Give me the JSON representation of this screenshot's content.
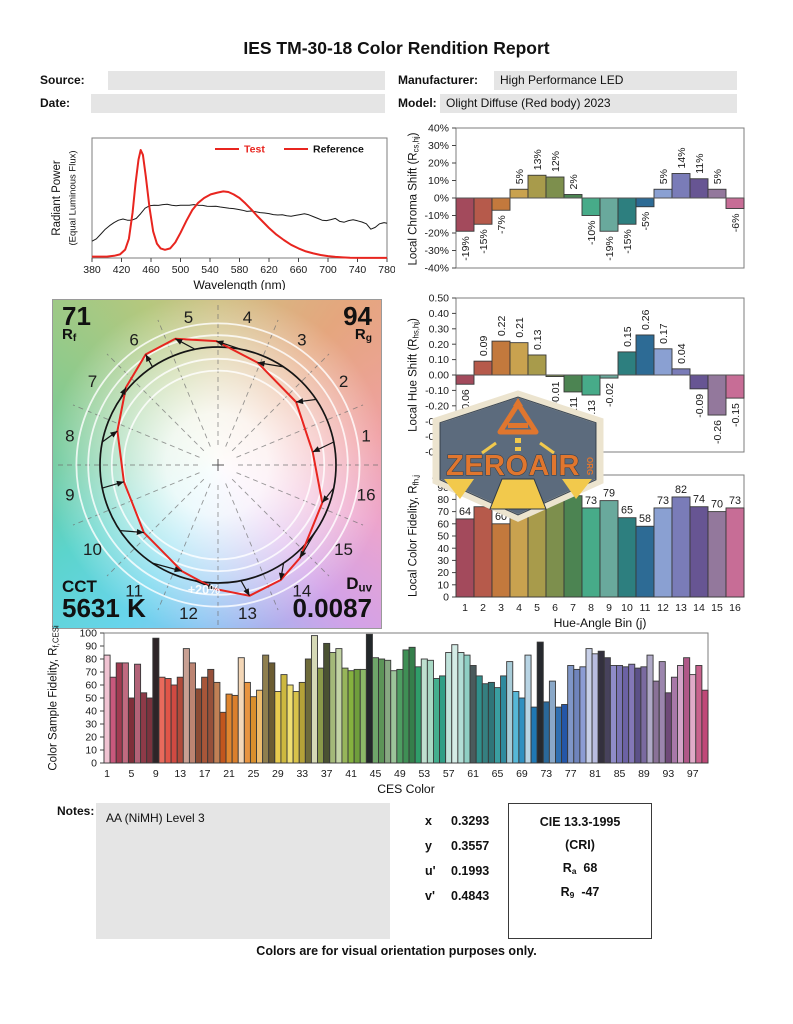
{
  "title": "IES TM-30-18 Color Rendition Report",
  "header": {
    "source_label": "Source:",
    "source_value": "",
    "date_label": "Date:",
    "date_value": "",
    "manufacturer_label": "Manufacturer:",
    "manufacturer_value": "High Performance LED",
    "model_label": "Model:",
    "model_value": "Olight Diffuse (Red body) 2023"
  },
  "cvg": {
    "rf_value": "71",
    "rf_pre": "R",
    "rf_sub": "f",
    "rg_value": "94",
    "rg_pre": "R",
    "rg_sub": "g",
    "cct_label": "CCT",
    "cct_value": "5631 K",
    "duv_pre": "D",
    "duv_sub": "uv",
    "duv_value": "0.0087",
    "ring_label": "+20%"
  },
  "watermark": {
    "text": "ZEROAIR",
    "suffix": "ORG"
  },
  "notes": {
    "label": "Notes:",
    "text": "AA (NiMH) Level 3"
  },
  "chromaticity": {
    "rows": [
      {
        "label": "x",
        "value": "0.3293"
      },
      {
        "label": "y",
        "value": "0.3557"
      },
      {
        "label": "u'",
        "value": "0.1993"
      },
      {
        "label": "v'",
        "value": "0.4843"
      }
    ]
  },
  "cie": {
    "title": "CIE 13.3-1995",
    "subtitle": "(CRI)",
    "ra_pre": "R",
    "ra_sub": "a",
    "ra_value": "68",
    "r9_pre": "R",
    "r9_sub": "9",
    "r9_value": "-47"
  },
  "footer": "Colors are for visual orientation purposes only.",
  "chart_data": [
    {
      "id": "spd",
      "type": "line",
      "xlabel": "Wavelength (nm)",
      "ylabel1": "Radiant Power",
      "ylabel2": "(Equal Luminous Flux)",
      "x_ticks": [
        380,
        420,
        460,
        500,
        540,
        580,
        620,
        660,
        700,
        740,
        780
      ],
      "xlim": [
        380,
        780
      ],
      "legend_line_color": "#e8251f",
      "series": [
        {
          "name": "Reference",
          "color": "#1a1a1a",
          "label_color": "#111111",
          "width": 1,
          "points": [
            [
              380,
              0.14
            ],
            [
              386,
              0.16
            ],
            [
              392,
              0.2
            ],
            [
              398,
              0.24
            ],
            [
              404,
              0.27
            ],
            [
              410,
              0.295
            ],
            [
              416,
              0.315
            ],
            [
              422,
              0.325
            ],
            [
              428,
              0.315
            ],
            [
              434,
              0.315
            ],
            [
              440,
              0.33
            ],
            [
              446,
              0.37
            ],
            [
              452,
              0.415
            ],
            [
              458,
              0.435
            ],
            [
              464,
              0.44
            ],
            [
              470,
              0.438
            ],
            [
              476,
              0.445
            ],
            [
              482,
              0.448
            ],
            [
              488,
              0.44
            ],
            [
              494,
              0.435
            ],
            [
              500,
              0.44
            ],
            [
              506,
              0.44
            ],
            [
              512,
              0.44
            ],
            [
              518,
              0.445
            ],
            [
              524,
              0.44
            ],
            [
              530,
              0.438
            ],
            [
              536,
              0.432
            ],
            [
              542,
              0.43
            ],
            [
              548,
              0.432
            ],
            [
              554,
              0.425
            ],
            [
              560,
              0.42
            ],
            [
              566,
              0.415
            ],
            [
              572,
              0.412
            ],
            [
              578,
              0.405
            ],
            [
              584,
              0.398
            ],
            [
              590,
              0.388
            ],
            [
              596,
              0.392
            ],
            [
              602,
              0.385
            ],
            [
              608,
              0.378
            ],
            [
              614,
              0.375
            ],
            [
              620,
              0.37
            ],
            [
              626,
              0.362
            ],
            [
              632,
              0.358
            ],
            [
              638,
              0.36
            ],
            [
              644,
              0.352
            ],
            [
              650,
              0.348
            ],
            [
              656,
              0.355
            ],
            [
              662,
              0.362
            ],
            [
              668,
              0.368
            ],
            [
              674,
              0.36
            ],
            [
              680,
              0.345
            ],
            [
              686,
              0.33
            ],
            [
              692,
              0.315
            ],
            [
              698,
              0.312
            ],
            [
              704,
              0.32
            ],
            [
              710,
              0.33
            ],
            [
              716,
              0.305
            ],
            [
              722,
              0.298
            ],
            [
              728,
              0.312
            ],
            [
              734,
              0.318
            ],
            [
              740,
              0.31
            ],
            [
              746,
              0.3
            ],
            [
              752,
              0.285
            ],
            [
              758,
              0.24
            ],
            [
              764,
              0.255
            ],
            [
              770,
              0.285
            ],
            [
              776,
              0.295
            ],
            [
              780,
              0.29
            ]
          ]
        },
        {
          "name": "Test",
          "color": "#e8251f",
          "label_color": "#e8251f",
          "width": 2,
          "points": [
            [
              380,
              0.012
            ],
            [
              400,
              0.012
            ],
            [
              410,
              0.018
            ],
            [
              418,
              0.03
            ],
            [
              425,
              0.07
            ],
            [
              430,
              0.16
            ],
            [
              435,
              0.38
            ],
            [
              439,
              0.62
            ],
            [
              443,
              0.82
            ],
            [
              446,
              0.9
            ],
            [
              449,
              0.86
            ],
            [
              453,
              0.68
            ],
            [
              458,
              0.42
            ],
            [
              463,
              0.22
            ],
            [
              468,
              0.12
            ],
            [
              473,
              0.08
            ],
            [
              479,
              0.068
            ],
            [
              486,
              0.08
            ],
            [
              493,
              0.13
            ],
            [
              500,
              0.21
            ],
            [
              508,
              0.31
            ],
            [
              516,
              0.4
            ],
            [
              524,
              0.46
            ],
            [
              532,
              0.5
            ],
            [
              541,
              0.53
            ],
            [
              550,
              0.545
            ],
            [
              558,
              0.555
            ],
            [
              565,
              0.55
            ],
            [
              572,
              0.53
            ],
            [
              580,
              0.5
            ],
            [
              588,
              0.455
            ],
            [
              596,
              0.405
            ],
            [
              604,
              0.35
            ],
            [
              612,
              0.3
            ],
            [
              620,
              0.25
            ],
            [
              630,
              0.195
            ],
            [
              640,
              0.15
            ],
            [
              650,
              0.11
            ],
            [
              660,
              0.08
            ],
            [
              670,
              0.055
            ],
            [
              680,
              0.038
            ],
            [
              690,
              0.025
            ],
            [
              700,
              0.016
            ],
            [
              710,
              0.009
            ],
            [
              720,
              0.005
            ],
            [
              730,
              0.002
            ],
            [
              745,
              0.001
            ],
            [
              780,
              0.001
            ]
          ]
        }
      ]
    },
    {
      "id": "local_chroma_shift",
      "type": "bar",
      "ylabel_parts": [
        "Local Chroma Shift (R",
        "cs,hj",
        ")"
      ],
      "categories": [
        1,
        2,
        3,
        4,
        5,
        6,
        7,
        8,
        9,
        10,
        11,
        12,
        13,
        14,
        15,
        16
      ],
      "values": [
        -19,
        -15,
        -7,
        5,
        13,
        12,
        2,
        -10,
        -19,
        -15,
        -5,
        5,
        14,
        11,
        5,
        -6
      ],
      "ylim": [
        -40,
        40
      ],
      "ytick": 10,
      "yfmt": "pct",
      "colors": [
        "#a34a5c",
        "#b65a4b",
        "#c3793d",
        "#c9a24f",
        "#a89b4b",
        "#7d8f4d",
        "#4c8452",
        "#47ab89",
        "#69a99c",
        "#2d7f7f",
        "#2d6b95",
        "#8aa0d2",
        "#7a7cb8",
        "#675593",
        "#93789c",
        "#c76d96"
      ]
    },
    {
      "id": "local_hue_shift",
      "type": "bar",
      "ylabel_parts": [
        "Local Hue Shift (R",
        "hs,hj",
        ")"
      ],
      "categories": [
        1,
        2,
        3,
        4,
        5,
        6,
        7,
        8,
        9,
        10,
        11,
        12,
        13,
        14,
        15,
        16
      ],
      "values": [
        -0.06,
        0.09,
        0.22,
        0.21,
        0.13,
        -0.01,
        -0.11,
        -0.13,
        -0.02,
        0.15,
        0.26,
        0.17,
        0.04,
        -0.09,
        -0.26,
        -0.15
      ],
      "ylim": [
        -0.5,
        0.5
      ],
      "ytick": 0.1,
      "ydec": 2,
      "colors": [
        "#a34a5c",
        "#b65a4b",
        "#c3793d",
        "#c9a24f",
        "#a89b4b",
        "#7d8f4d",
        "#4c8452",
        "#47ab89",
        "#69a99c",
        "#2d7f7f",
        "#2d6b95",
        "#8aa0d2",
        "#7a7cb8",
        "#675593",
        "#93789c",
        "#c76d96"
      ]
    },
    {
      "id": "local_color_fidelity",
      "type": "bar",
      "ylabel_parts": [
        "Local Color Fidelity, R",
        "fh,j",
        ""
      ],
      "xlabel": "Hue-Angle Bin (j)",
      "categories": [
        1,
        2,
        3,
        4,
        5,
        6,
        7,
        8,
        9,
        10,
        11,
        12,
        13,
        14,
        15,
        16
      ],
      "values": [
        64,
        74,
        60,
        67,
        74,
        82,
        83,
        73,
        79,
        65,
        58,
        73,
        82,
        74,
        70,
        73
      ],
      "ylim": [
        0,
        100
      ],
      "ytick": 10,
      "colors": [
        "#a34a5c",
        "#b65a4b",
        "#c3793d",
        "#c9a24f",
        "#a89b4b",
        "#7d8f4d",
        "#4c8452",
        "#47ab89",
        "#69a99c",
        "#2d7f7f",
        "#2d6b95",
        "#8aa0d2",
        "#7a7cb8",
        "#675593",
        "#93789c",
        "#c76d96"
      ]
    },
    {
      "id": "ces",
      "type": "bar",
      "ylabel_parts": [
        "Color Sample Fidelity, R",
        "f,CESi",
        ""
      ],
      "xlabel": "CES Color",
      "x_tick_labels": [
        1,
        5,
        9,
        13,
        17,
        21,
        25,
        29,
        33,
        37,
        41,
        45,
        49,
        53,
        57,
        61,
        65,
        69,
        73,
        77,
        81,
        85,
        89,
        93,
        97
      ],
      "values": [
        83,
        66,
        77,
        77,
        50,
        76,
        54,
        50,
        96,
        66,
        65,
        60,
        66,
        88,
        77,
        57,
        66,
        72,
        62,
        39,
        53,
        52,
        81,
        62,
        51,
        56,
        83,
        77,
        55,
        68,
        60,
        55,
        62,
        80,
        98,
        73,
        92,
        85,
        88,
        73,
        71,
        72,
        72,
        99,
        81,
        80,
        79,
        71,
        72,
        87,
        89,
        74,
        80,
        79,
        65,
        67,
        85,
        91,
        85,
        83,
        75,
        67,
        61,
        62,
        58,
        67,
        78,
        55,
        50,
        83,
        43,
        93,
        47,
        63,
        43,
        45,
        75,
        72,
        74,
        88,
        84,
        86,
        81,
        75,
        75,
        74,
        76,
        73,
        74,
        83,
        63,
        78,
        54,
        66,
        75,
        81,
        68,
        75,
        56
      ],
      "ylim": [
        0,
        100
      ],
      "ytick": 10,
      "colors": [
        "#f0c3d2",
        "#c8587c",
        "#a03a50",
        "#c06a80",
        "#7e2f3a",
        "#b26378",
        "#8e3a48",
        "#7c333e",
        "#2e2528",
        "#e86a5c",
        "#e05548",
        "#d04a42",
        "#b04a3a",
        "#c8a093",
        "#bc8472",
        "#8a4a33",
        "#a85639",
        "#96503a",
        "#c08055",
        "#c2561d",
        "#e0862e",
        "#da7f2c",
        "#f4d7b7",
        "#e89440",
        "#d98f2c",
        "#eebd6e",
        "#8f7f4e",
        "#6b5c32",
        "#e8cc4e",
        "#cdb83f",
        "#f0df71",
        "#d8c24a",
        "#b5a238",
        "#6e6b3a",
        "#d6d9b6",
        "#8a9a4a",
        "#4a5232",
        "#a4b979",
        "#c3d4a5",
        "#97b55a",
        "#85b23e",
        "#6f9e3c",
        "#8cba68",
        "#23282a",
        "#6fa66a",
        "#5c9458",
        "#87a882",
        "#9cc49a",
        "#4e9e62",
        "#3f8f55",
        "#357f4b",
        "#2f9e6a",
        "#bfe0d0",
        "#a8d8c4",
        "#44ae8e",
        "#2f9e86",
        "#bfe2da",
        "#d4ece6",
        "#b2ded6",
        "#8fcfc4",
        "#4a5a5c",
        "#2f8f8c",
        "#357f80",
        "#2f7578",
        "#3a9ea0",
        "#2f8a9e",
        "#a8ccd8",
        "#57b8d8",
        "#2f8fc0",
        "#b8d4e4",
        "#1f78b4",
        "#26292e",
        "#2a6899",
        "#8aa8c8",
        "#2f6fb0",
        "#2456a8",
        "#7f96c8",
        "#6f84bc",
        "#8c9cd4",
        "#c8d0e8",
        "#b8bce0",
        "#33303e",
        "#47425c",
        "#8f8cc8",
        "#7a74b4",
        "#6c62a4",
        "#8478b8",
        "#5c5188",
        "#7a6aa0",
        "#b0aac8",
        "#8a7298",
        "#9c86ae",
        "#6f4a78",
        "#a878a8",
        "#d4a4c8",
        "#b05888",
        "#e0aac8",
        "#c8618c",
        "#c04878"
      ]
    },
    {
      "id": "cvg",
      "type": "polar_vector",
      "rf": 71,
      "rg": 94,
      "cct_k": 5631,
      "duv": 0.0087,
      "bin_labels": [
        "1",
        "2",
        "3",
        "4",
        "5",
        "6",
        "7",
        "8",
        "9",
        "10",
        "11",
        "12",
        "13",
        "14",
        "15",
        "16"
      ],
      "reference_radius": 1.0,
      "rings": [
        0.8,
        0.9,
        1.1,
        1.2
      ],
      "test_rcs_pct": [
        -19,
        -15,
        -7,
        5,
        13,
        12,
        2,
        -10,
        -19,
        -15,
        -5,
        5,
        14,
        11,
        5,
        -6
      ],
      "test_rhs": [
        -0.06,
        0.09,
        0.22,
        0.21,
        0.13,
        -0.01,
        -0.11,
        -0.13,
        -0.02,
        0.15,
        0.26,
        0.17,
        0.04,
        -0.09,
        -0.26,
        -0.15
      ],
      "reference_color": "#151515",
      "test_color": "#e8251f"
    }
  ]
}
